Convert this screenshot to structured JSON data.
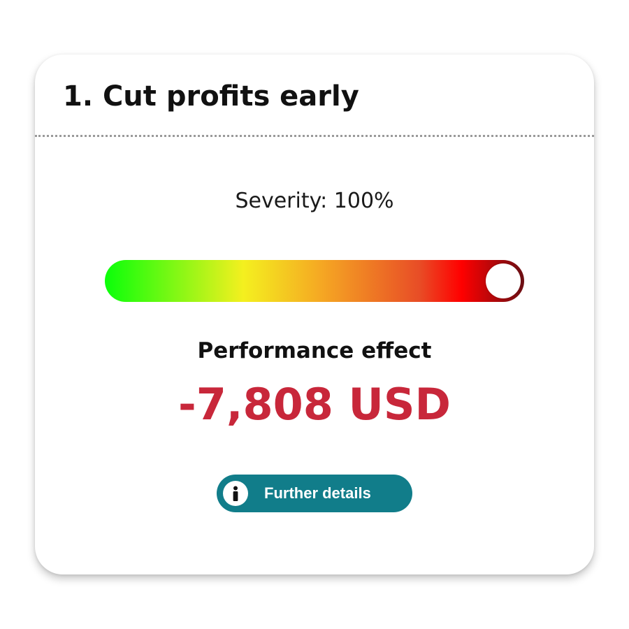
{
  "card": {
    "title": "1. Cut profits early",
    "severity": {
      "label": "Severity: 100%",
      "percent": 100
    },
    "performance": {
      "heading": "Performance effect",
      "value": "-7,808 USD"
    },
    "details_button": {
      "label": "Further details",
      "icon": "info-icon"
    }
  },
  "colors": {
    "accent": "#117d8a",
    "negative_value": "#c8273a",
    "gradient": [
      "#0aff0a",
      "#f4f01f",
      "#f5a623",
      "#e84d26",
      "#ff0000",
      "#6b0f14"
    ]
  }
}
